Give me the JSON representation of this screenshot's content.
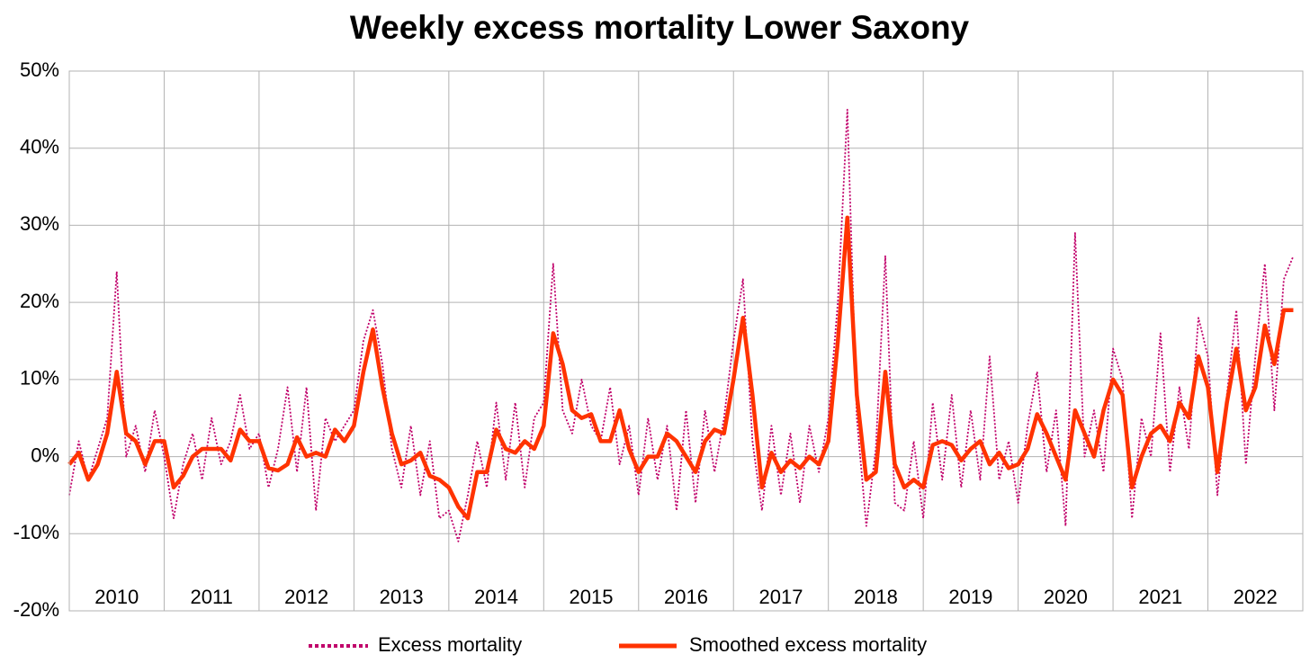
{
  "chart_data": {
    "type": "line",
    "title": "Weekly excess mortality Lower Saxony",
    "xlim": [
      2010,
      2023
    ],
    "xgrid": [
      2010,
      2011,
      2012,
      2013,
      2014,
      2015,
      2016,
      2017,
      2018,
      2019,
      2020,
      2021,
      2022,
      2023
    ],
    "xticks": [
      {
        "value": 2010.5,
        "label": "2010"
      },
      {
        "value": 2011.5,
        "label": "2011"
      },
      {
        "value": 2012.5,
        "label": "2012"
      },
      {
        "value": 2013.5,
        "label": "2013"
      },
      {
        "value": 2014.5,
        "label": "2014"
      },
      {
        "value": 2015.5,
        "label": "2015"
      },
      {
        "value": 2016.5,
        "label": "2016"
      },
      {
        "value": 2017.5,
        "label": "2017"
      },
      {
        "value": 2018.5,
        "label": "2018"
      },
      {
        "value": 2019.5,
        "label": "2019"
      },
      {
        "value": 2020.5,
        "label": "2020"
      },
      {
        "value": 2021.5,
        "label": "2021"
      },
      {
        "value": 2022.5,
        "label": "2022"
      }
    ],
    "ylim": [
      -20,
      50
    ],
    "yticks": [
      {
        "value": -20,
        "label": "-20%"
      },
      {
        "value": -10,
        "label": "-10%"
      },
      {
        "value": 0,
        "label": "0%"
      },
      {
        "value": 10,
        "label": "10%"
      },
      {
        "value": 20,
        "label": "20%"
      },
      {
        "value": 30,
        "label": "30%"
      },
      {
        "value": 40,
        "label": "40%"
      },
      {
        "value": 50,
        "label": "50%"
      }
    ],
    "grid": true,
    "legend": "bottom",
    "x": [
      2010.0,
      2010.1,
      2010.2,
      2010.3,
      2010.4,
      2010.5,
      2010.6,
      2010.7,
      2010.8,
      2010.9,
      2011.0,
      2011.1,
      2011.2,
      2011.3,
      2011.4,
      2011.5,
      2011.6,
      2011.7,
      2011.8,
      2011.9,
      2012.0,
      2012.1,
      2012.2,
      2012.3,
      2012.4,
      2012.5,
      2012.6,
      2012.7,
      2012.8,
      2012.9,
      2013.0,
      2013.1,
      2013.2,
      2013.3,
      2013.4,
      2013.5,
      2013.6,
      2013.7,
      2013.8,
      2013.9,
      2014.0,
      2014.1,
      2014.2,
      2014.3,
      2014.4,
      2014.5,
      2014.6,
      2014.7,
      2014.8,
      2014.9,
      2015.0,
      2015.1,
      2015.2,
      2015.3,
      2015.4,
      2015.5,
      2015.6,
      2015.7,
      2015.8,
      2015.9,
      2016.0,
      2016.1,
      2016.2,
      2016.3,
      2016.4,
      2016.5,
      2016.6,
      2016.7,
      2016.8,
      2016.9,
      2017.0,
      2017.1,
      2017.2,
      2017.3,
      2017.4,
      2017.5,
      2017.6,
      2017.7,
      2017.8,
      2017.9,
      2018.0,
      2018.1,
      2018.2,
      2018.3,
      2018.4,
      2018.5,
      2018.6,
      2018.7,
      2018.8,
      2018.9,
      2019.0,
      2019.1,
      2019.2,
      2019.3,
      2019.4,
      2019.5,
      2019.6,
      2019.7,
      2019.8,
      2019.9,
      2020.0,
      2020.1,
      2020.2,
      2020.3,
      2020.4,
      2020.5,
      2020.6,
      2020.7,
      2020.8,
      2020.9,
      2021.0,
      2021.1,
      2021.2,
      2021.3,
      2021.4,
      2021.5,
      2021.6,
      2021.7,
      2021.8,
      2021.9,
      2022.0,
      2022.1,
      2022.2,
      2022.3,
      2022.4,
      2022.5,
      2022.6,
      2022.7,
      2022.8,
      2022.9
    ],
    "series": [
      {
        "name": "Excess mortality",
        "color": "#c0006a",
        "style": "dotted",
        "values": [
          -5,
          2,
          -3,
          1,
          5,
          24,
          0,
          4,
          -2,
          6,
          0,
          -8,
          -1,
          3,
          -3,
          5,
          -1,
          2,
          8,
          1,
          3,
          -4,
          1,
          9,
          -2,
          9,
          -7,
          5,
          2,
          4,
          6,
          15,
          19,
          12,
          1,
          -4,
          4,
          -5,
          2,
          -8,
          -7,
          -11,
          -5,
          2,
          -4,
          7,
          -3,
          7,
          -4,
          5,
          7,
          25,
          6,
          3,
          10,
          4,
          2,
          9,
          -1,
          4,
          -5,
          5,
          -3,
          4,
          -7,
          6,
          -6,
          6,
          -2,
          5,
          15,
          23,
          2,
          -7,
          4,
          -5,
          3,
          -6,
          4,
          -2,
          5,
          20,
          45,
          5,
          -9,
          1,
          26,
          -6,
          -7,
          2,
          -8,
          7,
          -3,
          8,
          -4,
          6,
          -3,
          13,
          -3,
          2,
          -6,
          4,
          11,
          -2,
          6,
          -9,
          29,
          0,
          6,
          -2,
          14,
          10,
          -8,
          5,
          0,
          16,
          -2,
          9,
          1,
          18,
          13,
          -5,
          8,
          19,
          -1,
          13,
          25,
          6,
          23,
          26
        ]
      },
      {
        "name": "Smoothed excess mortality",
        "color": "#ff3300",
        "style": "solid",
        "values": [
          -1,
          0.5,
          -3,
          -1,
          3,
          11,
          3,
          2,
          -1,
          2,
          2,
          -4,
          -2.5,
          0,
          1,
          1,
          1,
          -0.5,
          3.5,
          2,
          2,
          -1.5,
          -1.8,
          -1,
          2.5,
          0,
          0.5,
          0,
          3.5,
          2,
          4,
          11,
          16.5,
          9,
          3,
          -1,
          -0.5,
          0.5,
          -2.5,
          -3,
          -4,
          -6.5,
          -8,
          -2,
          -2,
          3.5,
          1,
          0.5,
          2,
          1,
          4,
          16,
          12,
          6,
          5,
          5.5,
          2,
          2,
          6,
          1,
          -2,
          0,
          0,
          3,
          2,
          0,
          -2,
          2,
          3.5,
          3,
          10,
          18,
          8,
          -4,
          0.5,
          -2,
          -0.5,
          -1.5,
          0,
          -1,
          2,
          15,
          31,
          8,
          -3,
          -2,
          11,
          -1,
          -4,
          -3,
          -4,
          1.5,
          2,
          1.5,
          -0.5,
          1,
          2,
          -1,
          0.5,
          -1.5,
          -1,
          1,
          5.5,
          3,
          0,
          -3,
          6,
          3,
          0,
          6,
          10,
          8,
          -4,
          0,
          3,
          4,
          2,
          7,
          5,
          13,
          9,
          -2,
          7,
          14,
          6,
          9,
          17,
          12,
          19,
          19
        ]
      }
    ]
  }
}
